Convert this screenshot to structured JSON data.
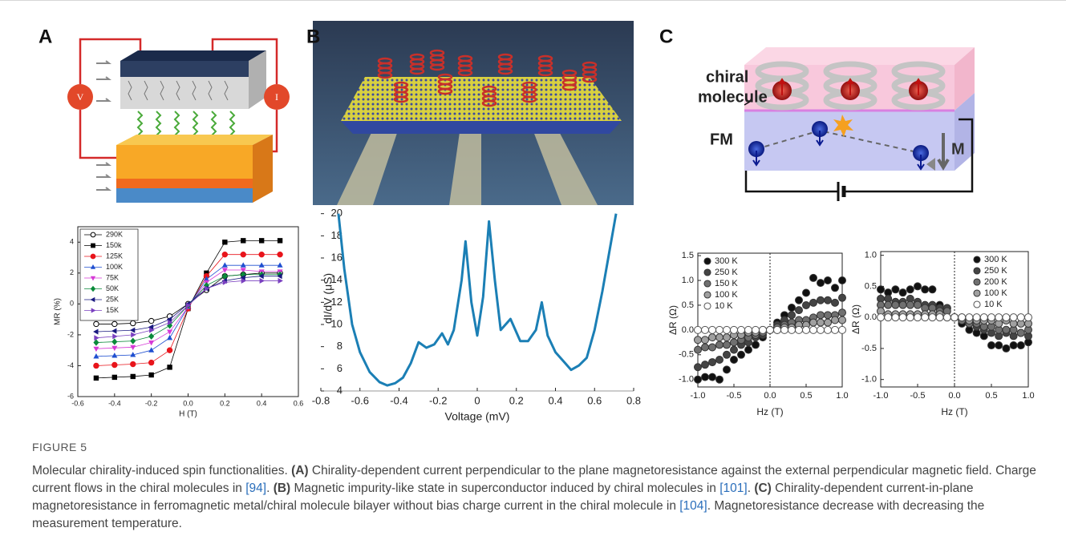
{
  "panel_a": {
    "label": "A",
    "meter_labels": [
      "V",
      "I"
    ]
  },
  "panel_b": {
    "label": "B"
  },
  "panel_c": {
    "label": "C",
    "molecule_label_lines": [
      "chiral",
      "molecule"
    ],
    "layer_label": "FM",
    "magnetization_label": "M"
  },
  "chart_data": [
    {
      "type": "line",
      "xlabel": "H (T)",
      "ylabel": "MR (%)",
      "xlim": [
        -0.6,
        0.6
      ],
      "ylim": [
        -6,
        5
      ],
      "xticks": [
        -0.6,
        -0.4,
        -0.2,
        {
          "value": 0,
          "label": "0.0"
        },
        0.2,
        0.4,
        0.6
      ],
      "yticks": [
        -6,
        -4,
        -2,
        0,
        2,
        4
      ],
      "legend": "upper left",
      "legend_frame": true,
      "x": [
        -0.5,
        -0.4,
        -0.3,
        -0.2,
        -0.1,
        0,
        0.1,
        0.2,
        0.3,
        0.4,
        0.5
      ],
      "series": [
        {
          "name": "290K",
          "color": "#000000",
          "marker": "open-circle",
          "values": [
            -1.3,
            -1.3,
            -1.25,
            -1.1,
            -0.8,
            0,
            0.9,
            1.8,
            1.9,
            2.0,
            2.0
          ]
        },
        {
          "name": "150k",
          "color": "#000000",
          "marker": "square",
          "values": [
            -4.8,
            -4.75,
            -4.7,
            -4.6,
            -4.1,
            -0.3,
            2.0,
            4.0,
            4.1,
            4.1,
            4.1
          ]
        },
        {
          "name": "125K",
          "color": "#e8141b",
          "marker": "circle",
          "values": [
            -4.0,
            -3.95,
            -3.9,
            -3.8,
            -3.0,
            -0.3,
            1.8,
            3.2,
            3.2,
            3.2,
            3.2
          ]
        },
        {
          "name": "100K",
          "color": "#1f4fd0",
          "marker": "triangle-up",
          "values": [
            -3.4,
            -3.35,
            -3.3,
            -3.0,
            -2.2,
            -0.2,
            1.6,
            2.5,
            2.5,
            2.5,
            2.5
          ]
        },
        {
          "name": "75K",
          "color": "#d63ad6",
          "marker": "triangle-down",
          "values": [
            -2.9,
            -2.85,
            -2.8,
            -2.5,
            -1.8,
            -0.2,
            1.4,
            2.2,
            2.2,
            2.1,
            2.1
          ]
        },
        {
          "name": "50K",
          "color": "#0a8a3a",
          "marker": "diamond",
          "values": [
            -2.5,
            -2.45,
            -2.4,
            -2.1,
            -1.4,
            -0.1,
            1.2,
            1.8,
            1.9,
            1.9,
            1.9
          ]
        },
        {
          "name": "25K",
          "color": "#1a1a80",
          "marker": "triangle-left",
          "values": [
            -1.8,
            -1.75,
            -1.7,
            -1.5,
            -1.0,
            0,
            1.0,
            1.5,
            1.7,
            1.8,
            1.8
          ]
        },
        {
          "name": "15K",
          "color": "#7a40c0",
          "marker": "triangle-right",
          "values": [
            -2.2,
            -2.1,
            -2.0,
            -1.7,
            -1.2,
            -0.1,
            1.0,
            1.4,
            1.5,
            1.5,
            1.5
          ]
        }
      ]
    },
    {
      "type": "line",
      "xlabel": "Voltage (mV)",
      "ylabel": "dI/dV (μS)",
      "xlim": [
        -0.8,
        0.8
      ],
      "ylim": [
        4,
        20.7
      ],
      "xticks": [
        -0.8,
        -0.6,
        -0.4,
        -0.2,
        0,
        0.2,
        0.4,
        0.6,
        0.8
      ],
      "yticks": [
        4,
        6,
        8,
        10,
        12,
        14,
        16,
        18,
        20
      ],
      "x": [
        -0.71,
        -0.68,
        -0.64,
        -0.6,
        -0.55,
        -0.5,
        -0.46,
        -0.42,
        -0.38,
        -0.34,
        -0.3,
        -0.26,
        -0.22,
        -0.18,
        -0.15,
        -0.12,
        -0.08,
        -0.06,
        -0.03,
        0,
        0.03,
        0.06,
        0.09,
        0.12,
        0.17,
        0.22,
        0.26,
        0.3,
        0.33,
        0.36,
        0.4,
        0.45,
        0.48,
        0.52,
        0.56,
        0.6,
        0.64,
        0.68,
        0.71
      ],
      "series": [
        {
          "color": "#1b7fb5",
          "values": [
            20,
            15,
            10,
            7.5,
            5.7,
            4.8,
            4.5,
            4.7,
            5.2,
            6.5,
            8.4,
            7.9,
            8.2,
            9.2,
            8.2,
            9.5,
            14,
            17.5,
            12,
            9,
            12.5,
            19.3,
            14,
            9.5,
            10.5,
            8.5,
            8.5,
            9.5,
            12,
            9,
            7.5,
            6.5,
            5.9,
            6.3,
            7,
            9.5,
            13,
            17,
            20
          ]
        }
      ]
    },
    {
      "type": "scatter",
      "xlabel": "Hz (T)",
      "ylabel": "ΔR (Ω)",
      "xlim": [
        -1.0,
        1.0
      ],
      "ylim": [
        -1.15,
        1.55
      ],
      "zero_lines": true,
      "xticks": [
        {
          "value": -1,
          "label": "-1.0"
        },
        -0.5,
        {
          "value": 0,
          "label": "0.0"
        },
        0.5,
        {
          "value": 1,
          "label": "1.0"
        }
      ],
      "yticks": [
        {
          "value": -1,
          "label": "-1.0"
        },
        -0.5,
        {
          "value": 0,
          "label": "0.0"
        },
        0.5,
        {
          "value": 1,
          "label": "1.0"
        },
        1.5
      ],
      "legend": "upper left",
      "x": [
        -1.0,
        -0.9,
        -0.8,
        -0.7,
        -0.6,
        -0.5,
        -0.4,
        -0.3,
        -0.2,
        -0.1,
        0,
        0.1,
        0.2,
        0.3,
        0.4,
        0.5,
        0.6,
        0.7,
        0.8,
        0.9,
        1.0
      ],
      "series": [
        {
          "name": "300 K",
          "color": "#111111",
          "marker": "circle",
          "values": [
            -1.0,
            -0.95,
            -0.95,
            -1.0,
            -0.8,
            -0.6,
            -0.5,
            -0.4,
            -0.3,
            -0.15,
            0,
            0.15,
            0.3,
            0.45,
            0.6,
            0.75,
            1.05,
            0.95,
            1.0,
            0.85,
            1.0
          ]
        },
        {
          "name": "250 K",
          "color": "#444444",
          "marker": "circle",
          "values": [
            -0.75,
            -0.7,
            -0.65,
            -0.6,
            -0.5,
            -0.4,
            -0.3,
            -0.25,
            -0.15,
            -0.1,
            0,
            0.1,
            0.2,
            0.3,
            0.4,
            0.5,
            0.55,
            0.6,
            0.6,
            0.55,
            0.65
          ]
        },
        {
          "name": "150 K",
          "color": "#707070",
          "marker": "circle",
          "values": [
            -0.4,
            -0.35,
            -0.35,
            -0.3,
            -0.3,
            -0.25,
            -0.2,
            -0.15,
            -0.1,
            -0.05,
            0,
            0.05,
            0.1,
            0.15,
            0.2,
            0.2,
            0.25,
            0.3,
            0.3,
            0.3,
            0.35
          ]
        },
        {
          "name": "100 K",
          "color": "#a0a0a0",
          "marker": "circle",
          "values": [
            -0.2,
            -0.2,
            -0.15,
            -0.15,
            -0.15,
            -0.1,
            -0.1,
            -0.05,
            -0.05,
            0,
            0,
            0,
            0.05,
            0.05,
            0.1,
            0.1,
            0.15,
            0.15,
            0.15,
            0.2,
            0.2
          ]
        },
        {
          "name": "10 K",
          "color": "#ffffff",
          "marker": "circle",
          "values": [
            0,
            0,
            0,
            0,
            0,
            0,
            0,
            0,
            0,
            0,
            0,
            0,
            0,
            0,
            0,
            0,
            0,
            0,
            0,
            0,
            0
          ]
        }
      ]
    },
    {
      "type": "scatter",
      "xlabel": "Hz (T)",
      "ylabel": "ΔR (Ω)",
      "xlim": [
        -1.0,
        1.0
      ],
      "ylim": [
        -1.12,
        1.06
      ],
      "zero_lines": true,
      "xticks": [
        {
          "value": -1,
          "label": "-1.0"
        },
        -0.5,
        {
          "value": 0,
          "label": "0.0"
        },
        0.5,
        {
          "value": 1,
          "label": "1.0"
        }
      ],
      "yticks": [
        {
          "value": -1,
          "label": "-1.0"
        },
        -0.5,
        {
          "value": 0,
          "label": "0.0"
        },
        0.5,
        {
          "value": 1,
          "label": "1.0"
        }
      ],
      "legend": "upper right",
      "x": [
        -1.0,
        -0.9,
        -0.8,
        -0.7,
        -0.6,
        -0.5,
        -0.4,
        -0.3,
        -0.2,
        -0.1,
        0,
        0.1,
        0.2,
        0.3,
        0.4,
        0.5,
        0.6,
        0.7,
        0.8,
        0.9,
        1.0
      ],
      "series": [
        {
          "name": "300 K",
          "color": "#111111",
          "marker": "circle",
          "values": [
            0.45,
            0.4,
            0.45,
            0.4,
            0.45,
            0.5,
            0.45,
            0.45,
            0.2,
            0.15,
            0,
            -0.1,
            -0.2,
            -0.25,
            -0.3,
            -0.45,
            -0.45,
            -0.5,
            -0.45,
            -0.45,
            -0.4
          ]
        },
        {
          "name": "250 K",
          "color": "#444444",
          "marker": "circle",
          "values": [
            0.3,
            0.3,
            0.25,
            0.25,
            0.3,
            0.25,
            0.2,
            0.2,
            0.15,
            0.15,
            0,
            -0.05,
            -0.1,
            -0.15,
            -0.2,
            -0.25,
            -0.3,
            -0.25,
            -0.3,
            -0.25,
            -0.3
          ]
        },
        {
          "name": "200 K",
          "color": "#707070",
          "marker": "circle",
          "values": [
            0.2,
            0.2,
            0.2,
            0.2,
            0.2,
            0.2,
            0.15,
            0.15,
            0.1,
            0.1,
            0,
            -0.05,
            -0.1,
            -0.1,
            -0.15,
            -0.15,
            -0.2,
            -0.2,
            -0.2,
            -0.25,
            -0.2
          ]
        },
        {
          "name": "100 K",
          "color": "#a0a0a0",
          "marker": "circle",
          "values": [
            0.1,
            0.05,
            0.05,
            0.05,
            0.05,
            0.05,
            0.05,
            0.05,
            0.05,
            0,
            0,
            0,
            -0.05,
            -0.05,
            -0.05,
            -0.05,
            -0.1,
            -0.05,
            -0.1,
            -0.1,
            -0.1
          ]
        },
        {
          "name": "10 K",
          "color": "#ffffff",
          "marker": "circle",
          "values": [
            0,
            0,
            0,
            0,
            0,
            0,
            0,
            0,
            0,
            0,
            0,
            0,
            0,
            0,
            0,
            0,
            0,
            0,
            0,
            0,
            0
          ]
        }
      ]
    }
  ],
  "caption": {
    "label": "FIGURE 5",
    "segments": [
      {
        "text": "Molecular chirality-induced spin functionalities. "
      },
      {
        "text": "(A)",
        "style": "bold"
      },
      {
        "text": " Chirality-dependent current perpendicular to the plane magnetoresistance against the external perpendicular magnetic field. Charge current flows in the chiral molecules in "
      },
      {
        "text": "[94]",
        "style": "link"
      },
      {
        "text": ". "
      },
      {
        "text": "(B)",
        "style": "bold"
      },
      {
        "text": " Magnetic impurity-like state in superconductor induced by chiral molecules in "
      },
      {
        "text": "[101]",
        "style": "link"
      },
      {
        "text": ". "
      },
      {
        "text": "(C)",
        "style": "bold"
      },
      {
        "text": " Chirality-dependent current-in-plane magnetoresistance in ferromagnetic metal/chiral molecule bilayer without bias charge current in the chiral molecule in "
      },
      {
        "text": "[104]",
        "style": "link"
      },
      {
        "text": ". Magnetoresistance decrease with decreasing the measurement temperature."
      }
    ]
  }
}
